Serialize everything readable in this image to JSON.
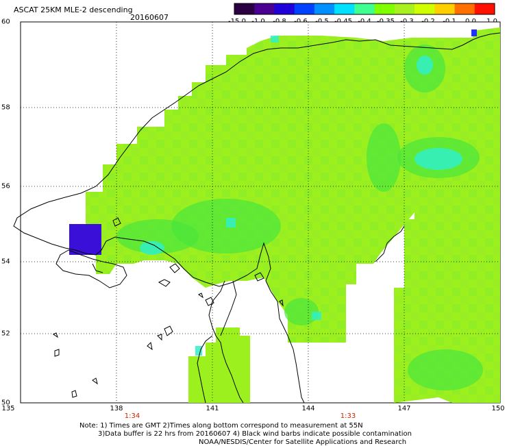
{
  "title": "ASCAT 25KM MLE-2 descending",
  "date": "20160607",
  "colorbar": {
    "labels": [
      "-15.0",
      "-1.0",
      "-0.8",
      "-0.6",
      "-0.5",
      "-0.45",
      "-0.4",
      "-0.35",
      "-0.3",
      "-0.2",
      "-0.1",
      "0.0",
      "1.0"
    ],
    "colors": [
      "#2a0040",
      "#4a0090",
      "#2000d8",
      "#0040ff",
      "#0090ff",
      "#00e0ff",
      "#40ff90",
      "#80ff00",
      "#a8f020",
      "#d0ff00",
      "#ffd000",
      "#ff7000",
      "#ff1000"
    ]
  },
  "lat_labels": [
    "60",
    "58",
    "56",
    "54",
    "52",
    "50"
  ],
  "lon_labels": [
    "135",
    "138",
    "141",
    "144",
    "147",
    "150"
  ],
  "time_labels": [
    "1:34",
    "1:33"
  ],
  "notes": {
    "line1": "Note: 1) Times are GMT 2)Times along bottom correspond to measurement at 55N",
    "line2": "3)Data buffer is 22 hrs from 20160607 4) Black wind barbs indicate possible contamination",
    "line3": "NOAA/NESDIS/Center for Satellite Applications and Research"
  },
  "map_colors": {
    "data_main": "#9cf01e",
    "data_green": "#4ae63c",
    "data_cyan": "#30f0c8",
    "data_purple": "#3a10d8",
    "coast": "#000000"
  }
}
